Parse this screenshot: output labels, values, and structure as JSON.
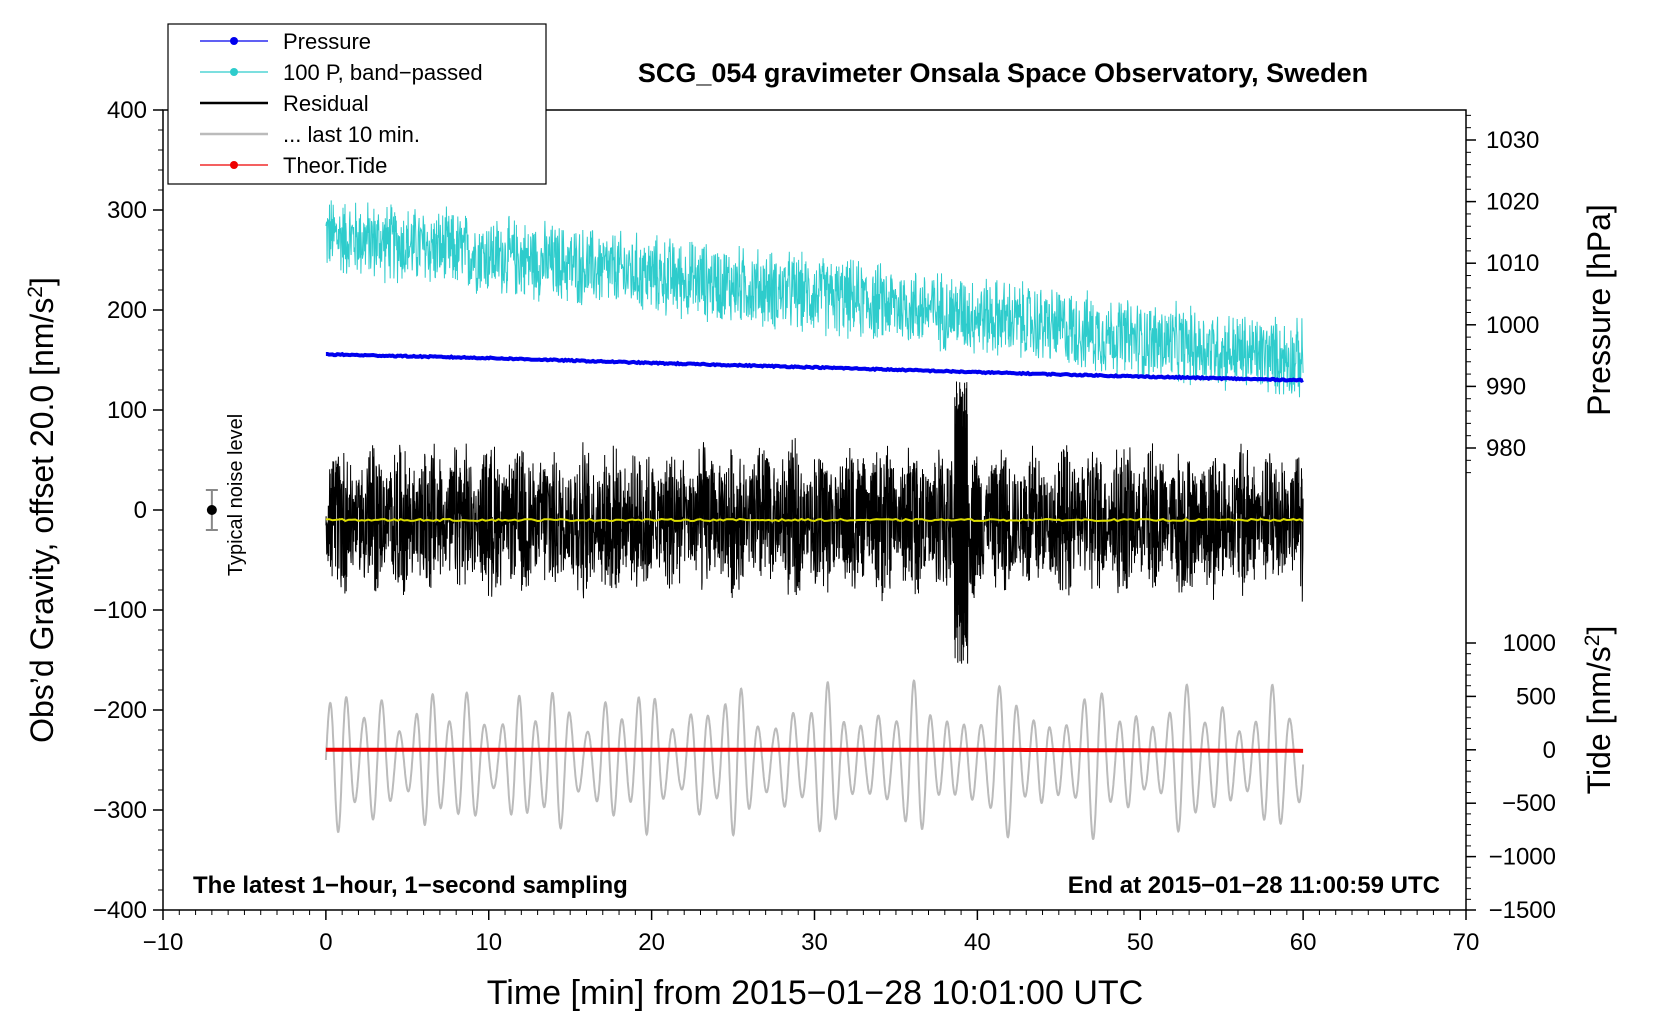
{
  "chart_data": {
    "type": "line",
    "title": "SCG_054 gravimeter Onsala Space Observatory, Sweden",
    "xlabel": "Time [min] from 2015−01−28 10:01:00 UTC",
    "ylabel_left_prefix": "Obs’d Gravity, offset 20.0 [nm/s",
    "ylabel_left_exp": "2",
    "ylabel_left_suffix": "]",
    "ylabel_pressure": "Pressure [hPa]",
    "ylabel_tide_prefix": "Tide [nm/s",
    "ylabel_tide_exp": "2",
    "ylabel_tide_suffix": "]",
    "xlim": [
      -10,
      70
    ],
    "ylim": [
      -400,
      400
    ],
    "x_ticks": [
      -10,
      0,
      10,
      20,
      30,
      40,
      50,
      60,
      70
    ],
    "x_tick_labels": [
      "−10",
      "0",
      "10",
      "20",
      "30",
      "40",
      "50",
      "60",
      "70"
    ],
    "y_ticks": [
      -400,
      -300,
      -200,
      -100,
      0,
      100,
      200,
      300,
      400
    ],
    "y_tick_labels": [
      "−400",
      "−300",
      "−200",
      "−100",
      "0",
      "100",
      "200",
      "300",
      "400"
    ],
    "pressure_ticks": [
      980,
      990,
      1000,
      1010,
      1020,
      1030
    ],
    "pressure_tick_labels": [
      "980",
      "990",
      "1000",
      "1010",
      "1020",
      "1030"
    ],
    "pressure_axis_map": {
      "value_a": 980,
      "gravity_a": 62,
      "value_b": 1030,
      "gravity_b": 370
    },
    "tide_ticks": [
      -1500,
      -1000,
      -500,
      0,
      500,
      1000
    ],
    "tide_tick_labels": [
      "−1500",
      "−1000",
      "−500",
      "0",
      "500",
      "1000"
    ],
    "tide_axis_map": {
      "value_a": -1500,
      "gravity_a": -400,
      "value_b": 1000,
      "gravity_b": -133
    },
    "legend_position": "top-left",
    "legend": [
      {
        "label": "Pressure",
        "color": "#0000ee",
        "marker": true
      },
      {
        "label": "100 P, band−passed",
        "color": "#2ecccc",
        "marker": true
      },
      {
        "label": "Residual",
        "color": "#000000",
        "marker": false
      },
      {
        "label": "... last 10 min.",
        "color": "#bbbbbb",
        "marker": false
      },
      {
        "label": "Theor.Tide",
        "color": "#ee0000",
        "marker": true
      }
    ],
    "noise_marker": {
      "label": "Typical noise level",
      "x": -7,
      "y": 0,
      "error": 20
    },
    "annotation_left": "The latest 1−hour, 1−second sampling",
    "annotation_right": "End at 2015−01−28 11:00:59 UTC",
    "series": [
      {
        "name": "Pressure",
        "color": "#0000ee",
        "x": [
          0,
          10,
          20,
          30,
          40,
          50,
          60
        ],
        "pressure_hPa": [
          995.2,
          994.6,
          993.8,
          993.1,
          992.3,
          991.6,
          991.0
        ]
      },
      {
        "name": "100 P, band−passed",
        "color": "#2ecccc",
        "x": [
          0,
          10,
          20,
          30,
          40,
          50,
          60
        ],
        "mean_gravity": [
          275,
          255,
          235,
          215,
          195,
          170,
          150
        ],
        "amplitude_gravity": 45
      },
      {
        "name": "Residual",
        "color": "#000000",
        "x": [
          0,
          10,
          20,
          30,
          40,
          50,
          60
        ],
        "mean_gravity": [
          -10,
          -10,
          -10,
          -10,
          -10,
          -10,
          -10
        ],
        "amplitude_gravity": 80,
        "extremes": {
          "max": 135,
          "min": -155,
          "at_x": 39
        }
      },
      {
        "name": "Residual smoothed",
        "color": "#dddd00",
        "x": [
          0,
          60
        ],
        "mean_gravity": [
          -10,
          -10
        ]
      },
      {
        "name": "... last 10 min.",
        "color": "#bbbbbb",
        "x": [
          0,
          60
        ],
        "mean_gravity": [
          -250,
          -250
        ],
        "amplitude_gravity": 80
      },
      {
        "name": "Theor.Tide",
        "color": "#ee0000",
        "x": [
          0,
          10,
          20,
          30,
          40,
          50,
          60
        ],
        "tide_nm_s2": [
          0,
          0,
          0,
          0,
          0,
          -5,
          -10
        ]
      }
    ]
  }
}
